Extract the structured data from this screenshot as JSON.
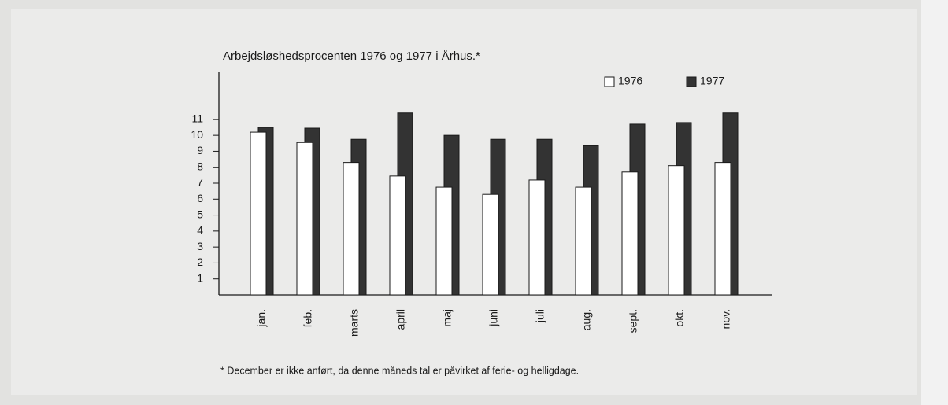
{
  "chart_data": {
    "type": "bar",
    "title": "Arbejdsløshedsprocenten 1976 og 1977 i Århus.*",
    "footnote": "* December er ikke anført, da denne måneds tal er påvirket af ferie- og helligdage.",
    "categories": [
      "jan.",
      "feb.",
      "marts",
      "april",
      "maj",
      "juni",
      "juli",
      "aug.",
      "sept.",
      "okt.",
      "nov."
    ],
    "series": [
      {
        "name": "1976",
        "color": "#ffffff",
        "values": [
          10.2,
          9.55,
          8.3,
          7.45,
          6.75,
          6.3,
          7.2,
          6.75,
          7.7,
          8.1,
          8.3
        ]
      },
      {
        "name": "1977",
        "color": "#333333",
        "values": [
          10.5,
          10.45,
          9.75,
          11.4,
          10.0,
          9.75,
          9.75,
          9.35,
          10.7,
          10.8,
          11.4
        ]
      }
    ],
    "ylim": [
      0,
      14
    ],
    "yticks": [
      1,
      2,
      3,
      4,
      5,
      6,
      7,
      8,
      9,
      10,
      11
    ],
    "legend": "top-right",
    "grid": false
  }
}
